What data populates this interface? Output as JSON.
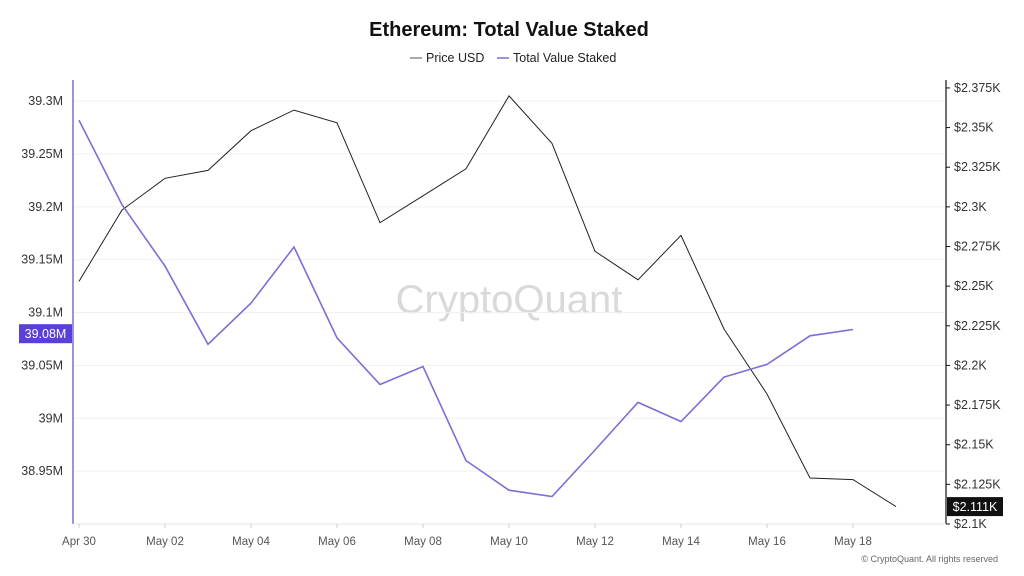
{
  "chart_data": {
    "type": "line",
    "title": "Ethereum: Total Value Staked",
    "x": [
      "Apr 30",
      "May 01",
      "May 02",
      "May 03",
      "May 04",
      "May 05",
      "May 06",
      "May 07",
      "May 08",
      "May 09",
      "May 10",
      "May 11",
      "May 12",
      "May 13",
      "May 14",
      "May 15",
      "May 16",
      "May 17",
      "May 18",
      "May 19"
    ],
    "x_tick_labels": [
      "Apr 30",
      "May 02",
      "May 04",
      "May 06",
      "May 08",
      "May 10",
      "May 12",
      "May 14",
      "May 16",
      "May 18"
    ],
    "series": [
      {
        "name": "Price USD",
        "axis": "right",
        "color": "#222222",
        "values": [
          2.253,
          2.298,
          2.318,
          2.323,
          2.348,
          2.361,
          2.353,
          2.29,
          2.307,
          2.324,
          2.37,
          2.34,
          2.272,
          2.254,
          2.282,
          2.223,
          2.182,
          2.129,
          2.128,
          2.111
        ]
      },
      {
        "name": "Total Value Staked",
        "axis": "left",
        "color": "#7b6fd6",
        "values": [
          39.282,
          39.202,
          39.144,
          39.07,
          39.109,
          39.162,
          39.076,
          39.032,
          39.049,
          38.96,
          38.932,
          38.926,
          38.97,
          39.015,
          38.997,
          39.039,
          39.051,
          39.078,
          39.084,
          null
        ]
      }
    ],
    "y_left": {
      "ylim": [
        38.9,
        39.32
      ],
      "ticks": [
        "38.95M",
        "39M",
        "39.05M",
        "39.1M",
        "39.15M",
        "39.2M",
        "39.25M",
        "39.3M"
      ],
      "tick_values": [
        38.95,
        39.0,
        39.05,
        39.1,
        39.15,
        39.2,
        39.25,
        39.3
      ]
    },
    "y_right": {
      "ylim": [
        2.1,
        2.38
      ],
      "ticks": [
        "$2.1K",
        "$2.125K",
        "$2.15K",
        "$2.175K",
        "$2.2K",
        "$2.225K",
        "$2.25K",
        "$2.275K",
        "$2.3K",
        "$2.325K",
        "$2.35K",
        "$2.375K"
      ],
      "tick_values": [
        2.1,
        2.125,
        2.15,
        2.175,
        2.2,
        2.225,
        2.25,
        2.275,
        2.3,
        2.325,
        2.35,
        2.375
      ]
    },
    "current_left_label": "39.08M",
    "current_left_value": 39.08,
    "current_right_label": "$2.111K",
    "current_right_value": 2.111,
    "legend": {
      "placement": "top-center",
      "items": [
        "Price USD",
        "Total Value Staked"
      ]
    },
    "grid": "horizontal",
    "watermark": "CryptoQuant",
    "copyright": "© CryptoQuant. All rights reserved"
  },
  "colors": {
    "price": "#222222",
    "staked": "#7b6fd6",
    "badge_left": "#5a3fd8",
    "badge_right": "#111111",
    "grid": "#f0f0f0"
  }
}
